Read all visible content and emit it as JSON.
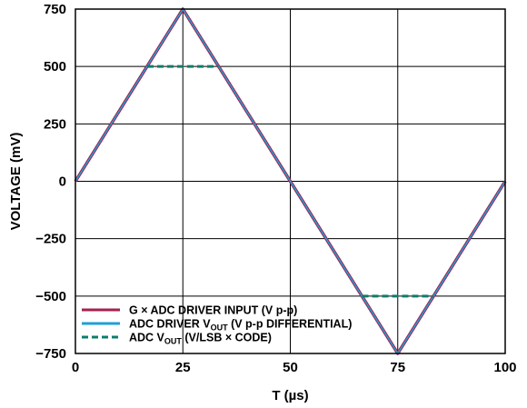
{
  "chart_data": {
    "type": "line",
    "xlabel": "T (µs)",
    "ylabel": "VOLTAGE (mV)",
    "xlim": [
      0,
      100
    ],
    "ylim": [
      -750,
      750
    ],
    "x_ticks": [
      "0",
      "25",
      "50",
      "75",
      "100"
    ],
    "y_ticks": [
      "750",
      "500",
      "250",
      "0",
      "−250",
      "−500",
      "−750"
    ],
    "grid": true,
    "legend_position": "bottom-left",
    "series": [
      {
        "name": "G × ADC DRIVER INPUT (V p-p)",
        "style": "solid",
        "color": "#a3224f",
        "x": [
          0,
          25,
          75,
          100
        ],
        "y": [
          0,
          750,
          -750,
          0
        ]
      },
      {
        "name": "ADC DRIVER VOUT (V p-p DIFFERENTIAL)",
        "style": "solid",
        "color": "#1f9fd5",
        "x": [
          0,
          25,
          75,
          100
        ],
        "y": [
          0,
          750,
          -750,
          0
        ]
      },
      {
        "name": "ADC VOUT (V/LSB × CODE)",
        "style": "dashed",
        "color": "#0d7d6b",
        "x": [
          0,
          16.7,
          33.3,
          66.7,
          83.3,
          100
        ],
        "y": [
          0,
          500,
          500,
          -500,
          -500,
          0
        ]
      }
    ],
    "legend": [
      {
        "main": "G × ADC DRIVER INPUT (V p-p)",
        "pre": "",
        "sub": "",
        "post": ""
      },
      {
        "main": "",
        "pre": "ADC DRIVER V",
        "sub": "OUT",
        "post": " (V p-p DIFFERENTIAL)"
      },
      {
        "main": "",
        "pre": "ADC V",
        "sub": "OUT",
        "post": " (V/LSB × CODE)"
      }
    ]
  }
}
